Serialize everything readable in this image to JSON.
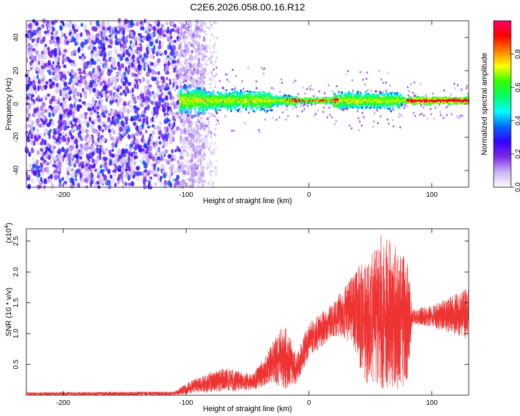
{
  "figure_title": "C2E6.2026.058.00.16.R12",
  "chart_data": [
    {
      "type": "heatmap",
      "title": "C2E6.2026.058.00.16.R12",
      "xlabel": "Height of straight line (km)",
      "ylabel": "Frequency (Hz)",
      "xlim": [
        -230,
        130
      ],
      "ylim": [
        -50,
        50
      ],
      "x_ticks": [
        -200,
        -100,
        0,
        100
      ],
      "y_ticks": [
        -40,
        -20,
        0,
        20,
        40
      ],
      "colorbar": {
        "label": "Normalized spectral amplitude",
        "range": [
          0.0,
          1.0
        ],
        "ticks": [
          "0.0",
          "0.2",
          "0.4",
          "0.6",
          "0.8"
        ],
        "colors": [
          "#ffffff",
          "#c9b3f5",
          "#7f2be6",
          "#3300ff",
          "#0066ff",
          "#00ffff",
          "#00ff66",
          "#33ff00",
          "#ffff00",
          "#ff8000",
          "#ff0000",
          "#ff0066"
        ]
      },
      "features": [
        {
          "name": "broadband noise",
          "x_range": [
            -230,
            -105
          ],
          "freq_range": [
            -50,
            50
          ],
          "amplitude": 0.15
        },
        {
          "name": "signal band",
          "x_range": [
            -105,
            130
          ],
          "center_freq": 2,
          "amplitude": 0.6
        },
        {
          "name": "peak band",
          "x_range": [
            80,
            130
          ],
          "center_freq": 2,
          "amplitude": 0.9
        }
      ]
    },
    {
      "type": "line",
      "xlabel": "Height of straight line (km)",
      "ylabel": "SNR (10 * v/v)",
      "scale_label": "(x10",
      "scale_exponent": "4",
      "xlim": [
        -230,
        130
      ],
      "ylim": [
        0,
        2.7
      ],
      "x_ticks": [
        -200,
        -100,
        0,
        100
      ],
      "y_ticks": [
        0.5,
        1.0,
        1.5,
        2.0,
        2.5
      ],
      "y_tick_labels": [
        "0.5",
        "1.0",
        "1.5",
        "2.0",
        "2.5"
      ],
      "series": [
        {
          "name": "SNR",
          "color": "#ee3333",
          "envelope": [
            {
              "x": -230,
              "low": 0.0,
              "high": 0.05
            },
            {
              "x": -110,
              "low": 0.0,
              "high": 0.06
            },
            {
              "x": -95,
              "low": 0.03,
              "high": 0.25
            },
            {
              "x": -70,
              "low": 0.05,
              "high": 0.45
            },
            {
              "x": -45,
              "low": 0.08,
              "high": 0.35
            },
            {
              "x": -30,
              "low": 0.2,
              "high": 0.85
            },
            {
              "x": -20,
              "low": 0.1,
              "high": 1.2
            },
            {
              "x": -10,
              "low": 0.15,
              "high": 0.65
            },
            {
              "x": 0,
              "low": 0.6,
              "high": 1.2
            },
            {
              "x": 20,
              "low": 0.95,
              "high": 1.5
            },
            {
              "x": 35,
              "low": 0.85,
              "high": 1.95
            },
            {
              "x": 45,
              "low": 0.2,
              "high": 2.2
            },
            {
              "x": 60,
              "low": 0.1,
              "high": 2.65
            },
            {
              "x": 80,
              "low": 0.1,
              "high": 2.2
            },
            {
              "x": 84,
              "low": 1.15,
              "high": 1.4
            },
            {
              "x": 100,
              "low": 1.1,
              "high": 1.45
            },
            {
              "x": 130,
              "low": 0.9,
              "high": 1.75
            }
          ]
        }
      ]
    }
  ]
}
